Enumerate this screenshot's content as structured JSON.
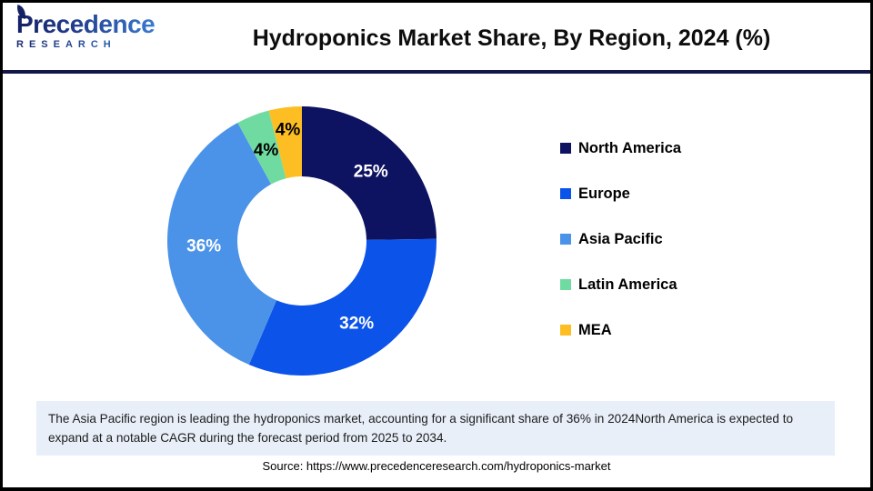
{
  "header": {
    "logo": {
      "line1": "Precedence",
      "line2": "RESEARCH"
    },
    "title": "Hydroponics Market Share, By Region, 2024 (%)"
  },
  "chart_data": {
    "type": "pie",
    "subtype": "donut",
    "title": "Hydroponics Market Share, By Region, 2024 (%)",
    "start_angle_deg": 0,
    "direction": "clockwise",
    "legend_position": "right",
    "slices": [
      {
        "name": "North America",
        "value": 25,
        "label": "25%",
        "color": "#0d1261",
        "label_color": "#ffffff",
        "label_radius": 0.73
      },
      {
        "name": "Europe",
        "value": 32,
        "label": "32%",
        "color": "#0b53e9",
        "label_color": "#ffffff",
        "label_radius": 0.73
      },
      {
        "name": "Asia Pacific",
        "value": 36,
        "label": "36%",
        "color": "#4b93e8",
        "label_color": "#ffffff",
        "label_radius": 0.73
      },
      {
        "name": "Latin America",
        "value": 4,
        "label": "4%",
        "color": "#70dba0",
        "label_color": "#000000",
        "label_radius": 0.73
      },
      {
        "name": "MEA",
        "value": 4,
        "label": "4%",
        "color": "#fcbe22",
        "label_color": "#000000",
        "label_radius": 0.84
      }
    ]
  },
  "note": {
    "text": "The Asia Pacific region is leading the hydroponics market, accounting for a significant share of 36% in 2024North America is expected to expand at a notable CAGR during the forecast period from 2025 to 2034."
  },
  "source": {
    "text": "Source: https://www.precedenceresearch.com/hydroponics-market"
  }
}
